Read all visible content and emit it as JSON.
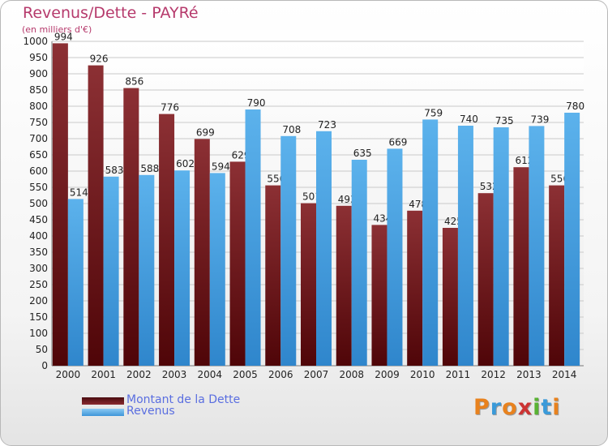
{
  "header": {
    "title": "Revenus/Dette - PAYRé",
    "subtitle": "(en milliers d'€)"
  },
  "chart_data": {
    "type": "bar",
    "title": "Revenus/Dette - PAYRé",
    "subtitle": "(en milliers d'€)",
    "xlabel": "",
    "ylabel": "",
    "ylim": [
      0,
      1000
    ],
    "ytick_step": 50,
    "grid": true,
    "legend_position": "bottom-left",
    "categories": [
      "2000",
      "2001",
      "2002",
      "2003",
      "2004",
      "2005",
      "2006",
      "2007",
      "2008",
      "2009",
      "2010",
      "2011",
      "2012",
      "2013",
      "2014"
    ],
    "series": [
      {
        "name": "Montant de la Dette",
        "color": "#7a1f24",
        "values": [
          994,
          926,
          856,
          776,
          699,
          629,
          556,
          501,
          493,
          434,
          478,
          425,
          532,
          612,
          556
        ]
      },
      {
        "name": "Revenus",
        "color": "#4ea7e6",
        "values": [
          514,
          583,
          588,
          602,
          594,
          790,
          708,
          723,
          635,
          669,
          759,
          740,
          735,
          739,
          780
        ]
      }
    ]
  },
  "logo": {
    "letters": [
      "P",
      "r",
      "o",
      "x",
      "i",
      "t",
      "i"
    ],
    "colors": [
      "#e8821e",
      "#3a9ad9",
      "#e8821e",
      "#cc3333",
      "#59b233",
      "#3a9ad9",
      "#e8821e"
    ]
  }
}
